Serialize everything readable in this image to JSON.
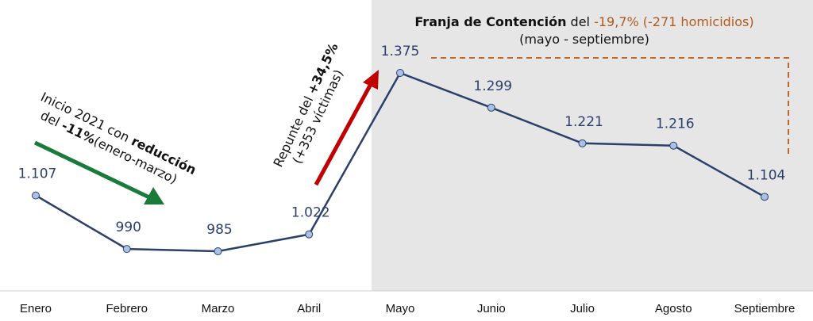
{
  "chart_data": {
    "type": "line",
    "categories": [
      "Enero",
      "Febrero",
      "Marzo",
      "Abril",
      "Mayo",
      "Junio",
      "Julio",
      "Agosto",
      "Septiembre"
    ],
    "values": [
      1107,
      990,
      985,
      1022,
      1375,
      1299,
      1221,
      1216,
      1104
    ],
    "value_labels": [
      "1.107",
      "990",
      "985",
      "1.022",
      "1.375",
      "1.299",
      "1.221",
      "1.216",
      "1.104"
    ],
    "shaded_range": {
      "from": "Mayo",
      "to": "Septiembre"
    },
    "colors": {
      "line": "#2b3f6b",
      "marker": "#a9c1e6",
      "shade": "#e6e6e6",
      "green_arrow": "#1a7a3a",
      "red_arrow": "#c00000",
      "orange": "#c0642a"
    }
  },
  "annotations": {
    "contention": {
      "title_bold": "Franja de Contención",
      "title_mid": " del ",
      "pct": "-19,7%",
      "count": " (-271 homicidios)",
      "subtitle": "(mayo - septiembre)"
    },
    "start": {
      "line1_a": "Inicio 2021 con ",
      "line1_b": "reducción",
      "line2_a": "del ",
      "line2_b": "-11%",
      "line2_c": "(enero-marzo)"
    },
    "rebound": {
      "line1_a": "Repunte",
      "line1_b": " del ",
      "line1_c": "+34,5%",
      "line2": "(+353 víctimas)"
    }
  }
}
